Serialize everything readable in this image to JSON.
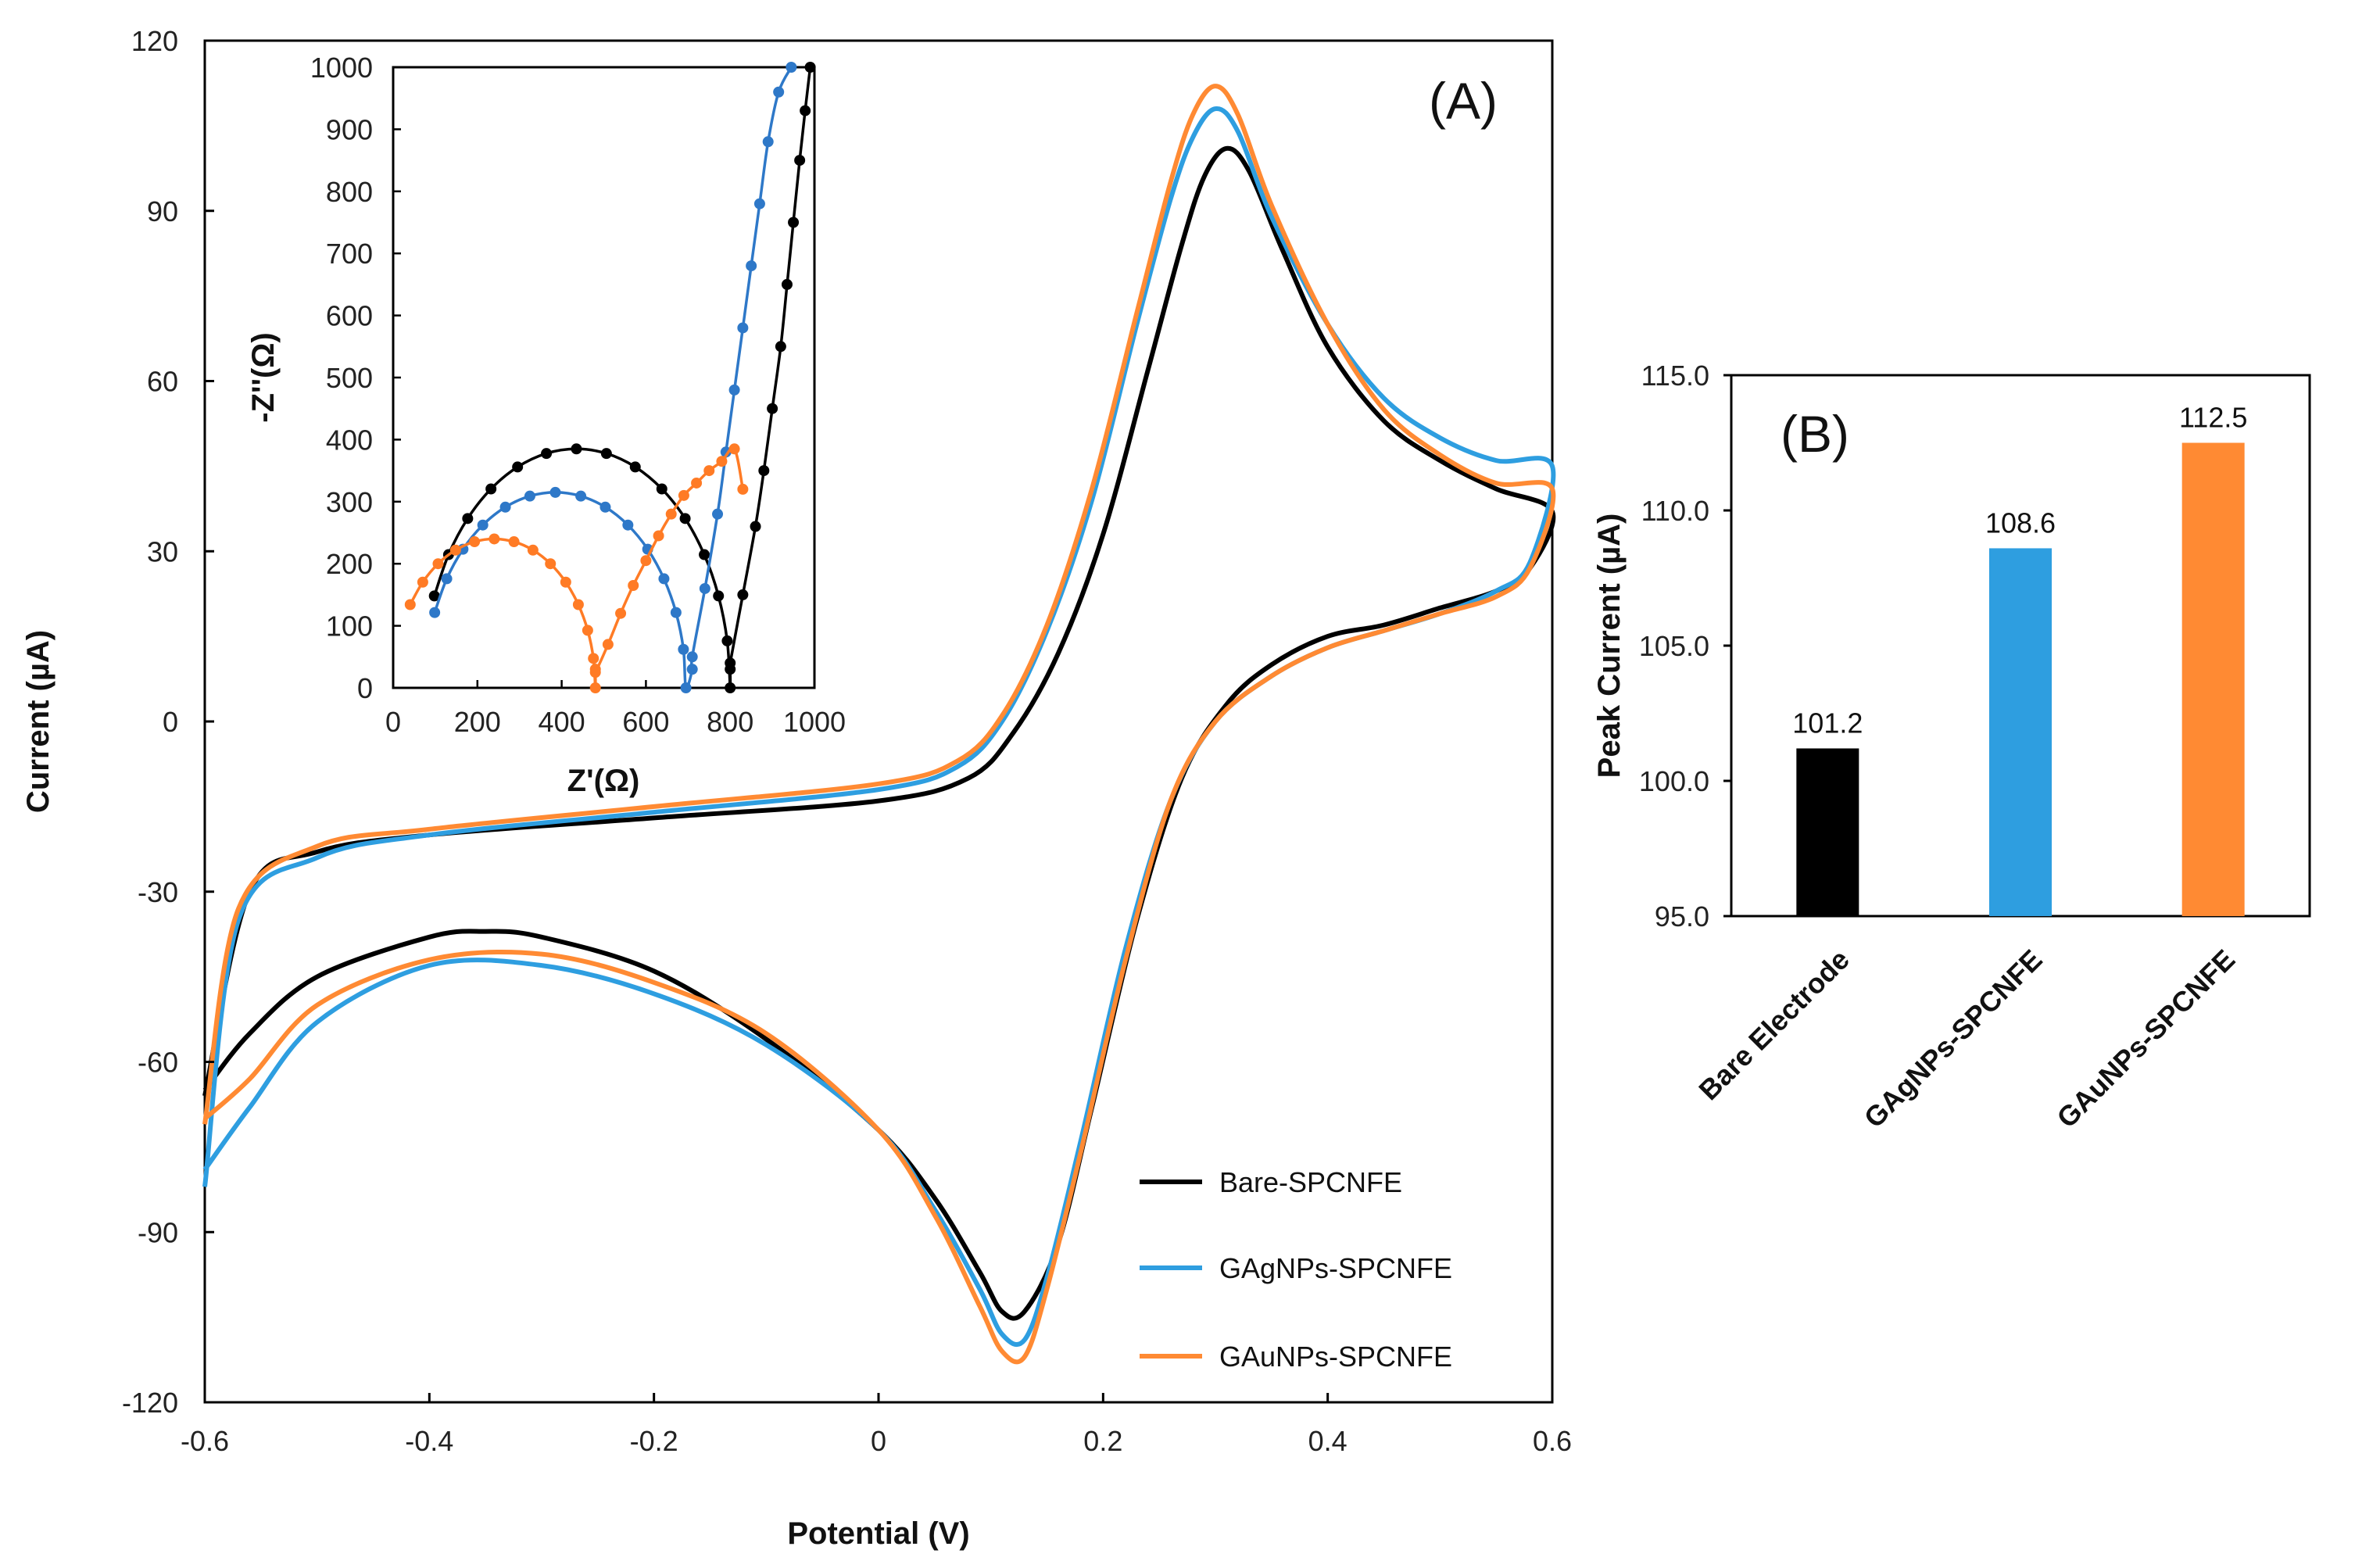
{
  "chart_data": [
    {
      "id": "cv",
      "type": "line",
      "panel_label": "(A)",
      "xlabel": "Potential (V)",
      "ylabel": "Current (µA)",
      "xlim": [
        -0.6,
        0.6
      ],
      "ylim": [
        -120,
        120
      ],
      "xticks": [
        -0.6,
        -0.4,
        -0.2,
        0,
        0.2,
        0.4,
        0.6
      ],
      "xtick_labels": [
        "-0.6",
        "-0.4",
        "-0.2",
        "0",
        "0.2",
        "0.4",
        "0.6"
      ],
      "yticks": [
        -120,
        -90,
        -60,
        -30,
        0,
        30,
        60,
        90,
        120
      ],
      "ytick_labels": [
        "-120",
        "-90",
        "-60",
        "-30",
        "0",
        "30",
        "60",
        "90",
        "120"
      ],
      "legend_position": "bottom-right",
      "series": [
        {
          "name": "Bare-SPCNFE",
          "color": "#000000",
          "forward": [
            [
              -0.6,
              -66
            ],
            [
              -0.56,
              -30
            ],
            [
              -0.5,
              -23
            ],
            [
              -0.4,
              -20
            ],
            [
              -0.2,
              -17
            ],
            [
              0,
              -14
            ],
            [
              0.08,
              -10
            ],
            [
              0.12,
              -2
            ],
            [
              0.16,
              12
            ],
            [
              0.2,
              33
            ],
            [
              0.24,
              62
            ],
            [
              0.27,
              84
            ],
            [
              0.29,
              96
            ],
            [
              0.31,
              101
            ],
            [
              0.33,
              97
            ],
            [
              0.36,
              83
            ],
            [
              0.4,
              66
            ],
            [
              0.45,
              53
            ],
            [
              0.5,
              46
            ],
            [
              0.55,
              41
            ],
            [
              0.6,
              37
            ]
          ],
          "reverse": [
            [
              0.6,
              32
            ],
            [
              0.58,
              27
            ],
            [
              0.55,
              23
            ],
            [
              0.5,
              20
            ],
            [
              0.45,
              17
            ],
            [
              0.4,
              15
            ],
            [
              0.35,
              10
            ],
            [
              0.31,
              3
            ],
            [
              0.27,
              -10
            ],
            [
              0.23,
              -35
            ],
            [
              0.19,
              -68
            ],
            [
              0.16,
              -92
            ],
            [
              0.13,
              -104
            ],
            [
              0.11,
              -104
            ],
            [
              0.09,
              -97
            ],
            [
              0.05,
              -84
            ],
            [
              0,
              -72
            ],
            [
              -0.1,
              -56
            ],
            [
              -0.2,
              -44
            ],
            [
              -0.3,
              -38
            ],
            [
              -0.35,
              -37
            ],
            [
              -0.4,
              -38
            ],
            [
              -0.5,
              -45
            ],
            [
              -0.56,
              -55
            ],
            [
              -0.6,
              -65
            ]
          ]
        },
        {
          "name": "GAgNPs-SPCNFE",
          "color": "#2e9ee0",
          "forward": [
            [
              -0.6,
              -82
            ],
            [
              -0.57,
              -35
            ],
            [
              -0.5,
              -24
            ],
            [
              -0.4,
              -20
            ],
            [
              -0.2,
              -16
            ],
            [
              0,
              -12
            ],
            [
              0.07,
              -8
            ],
            [
              0.11,
              0
            ],
            [
              0.15,
              16
            ],
            [
              0.19,
              39
            ],
            [
              0.23,
              70
            ],
            [
              0.26,
              92
            ],
            [
              0.28,
              103
            ],
            [
              0.3,
              108
            ],
            [
              0.32,
              104
            ],
            [
              0.35,
              89
            ],
            [
              0.4,
              70
            ],
            [
              0.45,
              57
            ],
            [
              0.5,
              50
            ],
            [
              0.55,
              46
            ],
            [
              0.6,
              45
            ]
          ],
          "reverse": [
            [
              0.6,
              34
            ],
            [
              0.58,
              28
            ],
            [
              0.55,
              23
            ],
            [
              0.5,
              19
            ],
            [
              0.45,
              16
            ],
            [
              0.4,
              13
            ],
            [
              0.35,
              8
            ],
            [
              0.3,
              0
            ],
            [
              0.26,
              -14
            ],
            [
              0.22,
              -40
            ],
            [
              0.18,
              -74
            ],
            [
              0.15,
              -98
            ],
            [
              0.13,
              -109
            ],
            [
              0.11,
              -108
            ],
            [
              0.09,
              -100
            ],
            [
              0.05,
              -86
            ],
            [
              0,
              -72
            ],
            [
              -0.1,
              -57
            ],
            [
              -0.2,
              -48
            ],
            [
              -0.3,
              -43
            ],
            [
              -0.4,
              -43
            ],
            [
              -0.5,
              -53
            ],
            [
              -0.56,
              -68
            ],
            [
              -0.6,
              -79
            ]
          ]
        },
        {
          "name": "GAuNPs-SPCNFE",
          "color": "#ff8a33",
          "forward": [
            [
              -0.6,
              -71
            ],
            [
              -0.57,
              -33
            ],
            [
              -0.5,
              -22
            ],
            [
              -0.4,
              -19
            ],
            [
              -0.2,
              -15
            ],
            [
              0,
              -11
            ],
            [
              0.07,
              -7
            ],
            [
              0.11,
              1
            ],
            [
              0.15,
              17
            ],
            [
              0.19,
              41
            ],
            [
              0.23,
              72
            ],
            [
              0.26,
              95
            ],
            [
              0.28,
              107
            ],
            [
              0.3,
              112
            ],
            [
              0.32,
              107
            ],
            [
              0.35,
              91
            ],
            [
              0.4,
              70
            ],
            [
              0.45,
              55
            ],
            [
              0.5,
              47
            ],
            [
              0.55,
              42
            ],
            [
              0.6,
              41
            ]
          ],
          "reverse": [
            [
              0.6,
              33
            ],
            [
              0.58,
              27
            ],
            [
              0.55,
              22
            ],
            [
              0.5,
              19
            ],
            [
              0.45,
              16
            ],
            [
              0.4,
              13
            ],
            [
              0.35,
              8
            ],
            [
              0.3,
              0
            ],
            [
              0.26,
              -14
            ],
            [
              0.22,
              -42
            ],
            [
              0.18,
              -76
            ],
            [
              0.15,
              -100
            ],
            [
              0.13,
              -112
            ],
            [
              0.11,
              -111
            ],
            [
              0.09,
              -103
            ],
            [
              0.05,
              -87
            ],
            [
              0,
              -72
            ],
            [
              -0.1,
              -55
            ],
            [
              -0.2,
              -46
            ],
            [
              -0.3,
              -41
            ],
            [
              -0.4,
              -42
            ],
            [
              -0.5,
              -50
            ],
            [
              -0.56,
              -63
            ],
            [
              -0.6,
              -70
            ]
          ]
        }
      ]
    },
    {
      "id": "eis",
      "type": "scatter",
      "inset_of": "cv",
      "xlabel": "Z'(Ω)",
      "ylabel": "-Z''(Ω)",
      "xlim": [
        0,
        1000
      ],
      "ylim": [
        0,
        1000
      ],
      "xticks": [
        0,
        200,
        400,
        600,
        800,
        1000
      ],
      "xtick_labels": [
        "0",
        "200",
        "400",
        "600",
        "800",
        "1000"
      ],
      "yticks": [
        0,
        100,
        200,
        300,
        400,
        500,
        600,
        700,
        800,
        900,
        1000
      ],
      "ytick_labels": [
        "0",
        "100",
        "200",
        "300",
        "400",
        "500",
        "600",
        "700",
        "800",
        "900",
        "1000"
      ],
      "series": [
        {
          "name": "Bare-SPCNFE",
          "color": "#000000",
          "arc_center": 435,
          "arc_radius": 365,
          "arc_height": 370,
          "min_z": 800,
          "tail": [
            [
              800,
              40
            ],
            [
              830,
              150
            ],
            [
              860,
              260
            ],
            [
              880,
              350
            ],
            [
              900,
              450
            ],
            [
              920,
              550
            ],
            [
              935,
              650
            ],
            [
              950,
              750
            ],
            [
              965,
              850
            ],
            [
              978,
              930
            ],
            [
              990,
              1000
            ]
          ]
        },
        {
          "name": "GAgNPs-SPCNFE",
          "color": "#2e78c8",
          "arc_center": 385,
          "arc_radius": 310,
          "arc_height": 300,
          "min_z": 710,
          "tail": [
            [
              710,
              50
            ],
            [
              740,
              160
            ],
            [
              770,
              280
            ],
            [
              790,
              380
            ],
            [
              810,
              480
            ],
            [
              830,
              580
            ],
            [
              850,
              680
            ],
            [
              870,
              780
            ],
            [
              890,
              880
            ],
            [
              915,
              960
            ],
            [
              945,
              1000
            ]
          ]
        },
        {
          "name": "GAuNPs-SPCNFE",
          "color": "#ff7b25",
          "arc_center": 240,
          "arc_radius": 240,
          "arc_height": 225,
          "min_z": 480,
          "tail": [
            [
              480,
              25
            ],
            [
              510,
              70
            ],
            [
              540,
              120
            ],
            [
              570,
              165
            ],
            [
              600,
              205
            ],
            [
              630,
              245
            ],
            [
              660,
              280
            ],
            [
              690,
              310
            ],
            [
              720,
              330
            ],
            [
              750,
              350
            ],
            [
              780,
              365
            ],
            [
              810,
              385
            ],
            [
              830,
              320
            ]
          ]
        }
      ]
    },
    {
      "id": "bar",
      "type": "bar",
      "panel_label": "(B)",
      "ylabel": "Peak Current (µA)",
      "ylim": [
        95,
        115
      ],
      "yticks": [
        95,
        100,
        105,
        110,
        115
      ],
      "ytick_labels": [
        "95.0",
        "100.0",
        "105.0",
        "110.0",
        "115.0"
      ],
      "categories": [
        "Bare Electrode",
        "GAgNPs-SPCNFE",
        "GAuNPs-SPCNFE"
      ],
      "values": [
        101.2,
        108.6,
        112.5
      ],
      "value_labels": [
        "101.2",
        "108.6",
        "112.5"
      ],
      "colors": [
        "#000000",
        "#2e9ee0",
        "#ff8a33"
      ]
    }
  ]
}
